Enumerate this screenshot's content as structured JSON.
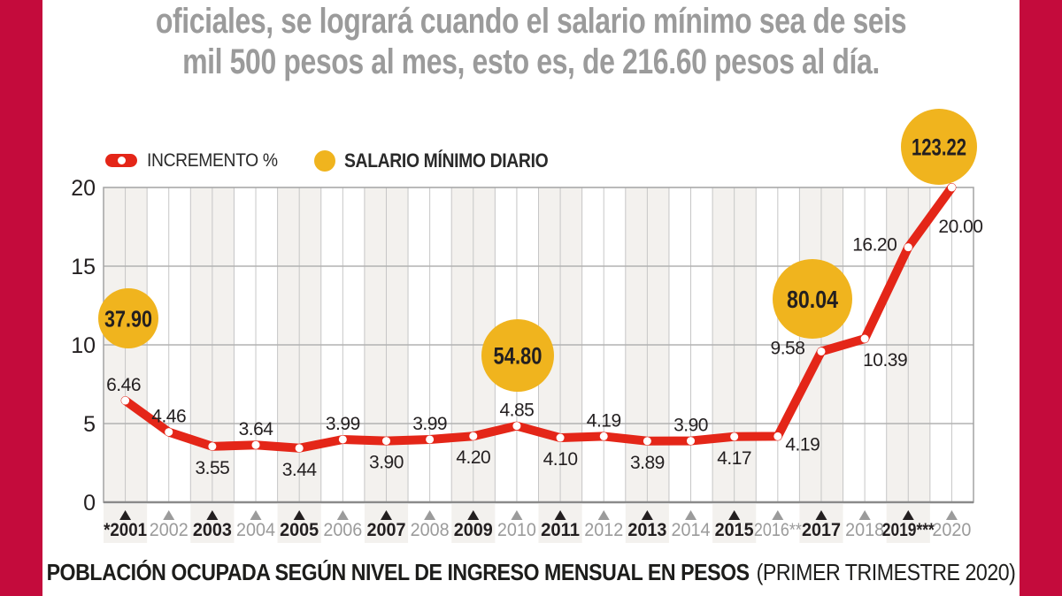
{
  "header": {
    "line1": "oficiales, se logrará cuando el salario mínimo sea de seis",
    "line2": "mil 500 pesos al mes, esto es, de 216.60 pesos al día."
  },
  "legend": {
    "increment_label": "INCREMENTO %",
    "salary_label": "SALARIO MÍNIMO DIARIO"
  },
  "footer": {
    "main": "POBLACIÓN OCUPADA SEGÚN NIVEL DE INGRESO MENSUAL EN PESOS",
    "note": "(PRIMER TRIMESTRE 2020)"
  },
  "colors": {
    "border_red": "#c40b3c",
    "line_red": "#e42618",
    "circle_yellow": "#f0b41e",
    "gray_text": "#9b9b9b",
    "black_text": "#231f20",
    "band_fill": "#f3f1ee",
    "grid_line": "#c6c6c6",
    "grid_major": "#b2b2b2",
    "plot_border": "#a3a3a3",
    "axis_line": "#8a8a8a"
  },
  "chart_data": {
    "type": "line",
    "series_name": "INCREMENTO %",
    "title": "",
    "xlabel": "",
    "ylabel": "",
    "ylim": [
      0,
      20
    ],
    "yticks": [
      0,
      5,
      10,
      15,
      20
    ],
    "grid": true,
    "legend_position": "top-left",
    "x_labels": [
      "*2001",
      "2002",
      "2003",
      "2004",
      "2005",
      "2006",
      "2007",
      "2008",
      "2009",
      "2010",
      "2011",
      "2012",
      "2013",
      "2014",
      "2015",
      "2016**",
      "2017",
      "2018",
      "2019***",
      "2020"
    ],
    "values": [
      6.46,
      4.46,
      3.55,
      3.64,
      3.44,
      3.99,
      3.9,
      3.99,
      4.2,
      4.85,
      4.1,
      4.19,
      3.89,
      3.9,
      4.17,
      4.19,
      9.58,
      10.39,
      16.2,
      20.0
    ],
    "value_labels": [
      "6.46",
      "4.46",
      "3.55",
      "3.64",
      "3.44",
      "3.99",
      "3.90",
      "3.99",
      "4.20",
      "4.85",
      "4.10",
      "4.19",
      "3.89",
      "3.90",
      "4.17",
      "4.19",
      "9.58",
      "10.39",
      "16.20",
      "20.00"
    ],
    "label_side": [
      "above",
      "above",
      "below",
      "above",
      "below",
      "above",
      "below",
      "above",
      "below",
      "above",
      "below",
      "above",
      "below",
      "above",
      "below",
      "below-right",
      "left",
      "below-right",
      "left",
      "right-below"
    ],
    "salario_minimo_circles": [
      {
        "label": "37.90",
        "at_year": "*2001"
      },
      {
        "label": "54.80",
        "at_year": "2010"
      },
      {
        "label": "80.04",
        "at_year": "2017"
      },
      {
        "label": "123.22",
        "at_year": "2020"
      }
    ]
  }
}
